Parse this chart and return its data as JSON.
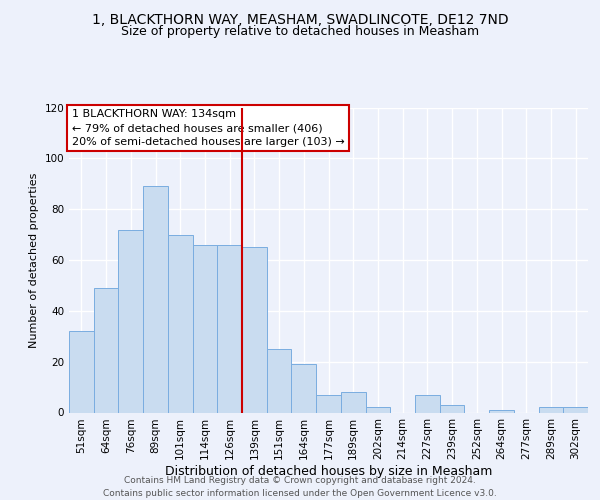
{
  "title": "1, BLACKTHORN WAY, MEASHAM, SWADLINCOTE, DE12 7ND",
  "subtitle": "Size of property relative to detached houses in Measham",
  "xlabel": "Distribution of detached houses by size in Measham",
  "ylabel": "Number of detached properties",
  "bar_labels": [
    "51sqm",
    "64sqm",
    "76sqm",
    "89sqm",
    "101sqm",
    "114sqm",
    "126sqm",
    "139sqm",
    "151sqm",
    "164sqm",
    "177sqm",
    "189sqm",
    "202sqm",
    "214sqm",
    "227sqm",
    "239sqm",
    "252sqm",
    "264sqm",
    "277sqm",
    "289sqm",
    "302sqm"
  ],
  "bar_heights": [
    32,
    49,
    72,
    89,
    70,
    66,
    66,
    65,
    25,
    19,
    7,
    8,
    2,
    0,
    7,
    3,
    0,
    1,
    0,
    2,
    2
  ],
  "bar_color": "#c9dcf0",
  "bar_edge_color": "#7aade0",
  "vline_color": "#cc0000",
  "annotation_line1": "1 BLACKTHORN WAY: 134sqm",
  "annotation_line2": "← 79% of detached houses are smaller (406)",
  "annotation_line3": "20% of semi-detached houses are larger (103) →",
  "annotation_box_color": "#ffffff",
  "annotation_box_edge": "#cc0000",
  "ylim": [
    0,
    120
  ],
  "yticks": [
    0,
    20,
    40,
    60,
    80,
    100,
    120
  ],
  "footer1": "Contains HM Land Registry data © Crown copyright and database right 2024.",
  "footer2": "Contains public sector information licensed under the Open Government Licence v3.0.",
  "bg_color": "#edf1fb",
  "grid_color": "#ffffff",
  "title_fontsize": 10,
  "subtitle_fontsize": 9,
  "xlabel_fontsize": 9,
  "ylabel_fontsize": 8,
  "tick_fontsize": 7.5,
  "annotation_fontsize": 8,
  "footer_fontsize": 6.5
}
